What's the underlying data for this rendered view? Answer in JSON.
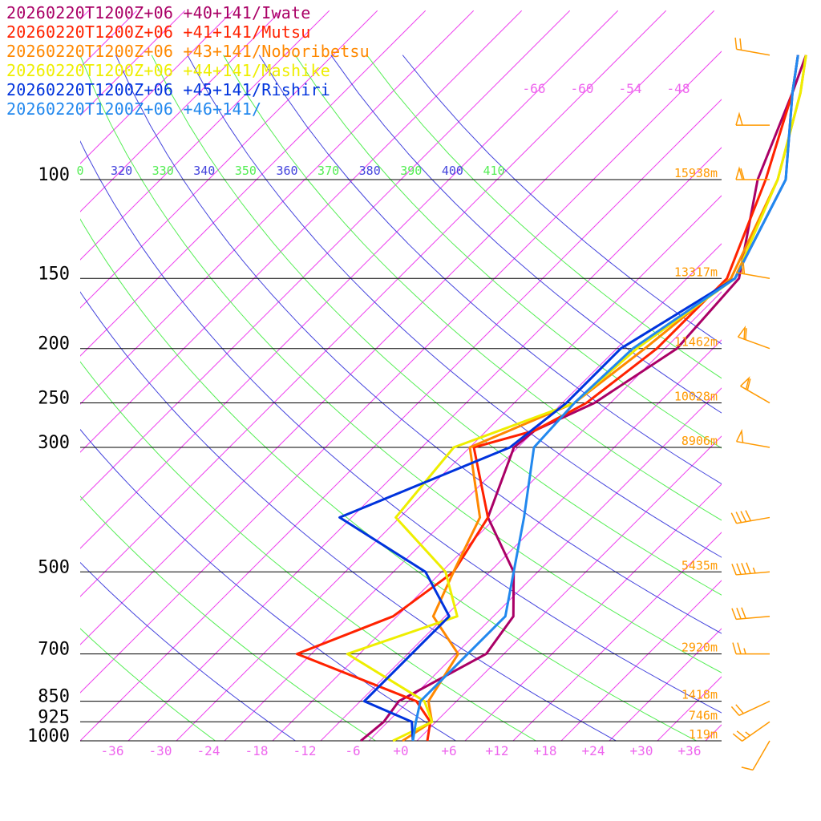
{
  "chart_data": {
    "type": "line",
    "title": "",
    "xlabel": "",
    "ylabel": "",
    "xlim": [
      -40,
      40
    ],
    "grid": true,
    "legend_placement": "top-left",
    "pressure_levels": [
      {
        "p": 100,
        "label": "100",
        "height": "15938m"
      },
      {
        "p": 150,
        "label": "150",
        "height": "13317m"
      },
      {
        "p": 200,
        "label": "200",
        "height": "11462m"
      },
      {
        "p": 250,
        "label": "250",
        "height": "10028m"
      },
      {
        "p": 300,
        "label": "300",
        "height": "8906m"
      },
      {
        "p": 500,
        "label": "500",
        "height": "5435m"
      },
      {
        "p": 700,
        "label": "700",
        "height": "2920m"
      },
      {
        "p": 850,
        "label": "850",
        "height": "1418m"
      },
      {
        "p": 925,
        "label": "925",
        "height": "746m"
      },
      {
        "p": 1000,
        "label": "1000",
        "height": "119m"
      }
    ],
    "x_ticks": [
      {
        "v": -36,
        "label": "-36"
      },
      {
        "v": -30,
        "label": "-30"
      },
      {
        "v": -24,
        "label": "-24"
      },
      {
        "v": -18,
        "label": "-18"
      },
      {
        "v": -12,
        "label": "-12"
      },
      {
        "v": -6,
        "label": "-6"
      },
      {
        "v": 0,
        "label": "+0"
      },
      {
        "v": 6,
        "label": "+6"
      },
      {
        "v": 12,
        "label": "+12"
      },
      {
        "v": 18,
        "label": "+18"
      },
      {
        "v": 24,
        "label": "+24"
      },
      {
        "v": 30,
        "label": "+30"
      },
      {
        "v": 36,
        "label": "+36"
      }
    ],
    "isotherm_labels": [
      "-66",
      "-60",
      "-54",
      "-48"
    ],
    "theta_labels": [
      {
        "text": "0",
        "color": "#55ee55"
      },
      {
        "text": "320",
        "color": "#4444dd"
      },
      {
        "text": "330",
        "color": "#55ee55"
      },
      {
        "text": "340",
        "color": "#4444dd"
      },
      {
        "text": "350",
        "color": "#55ee55"
      },
      {
        "text": "360",
        "color": "#4444dd"
      },
      {
        "text": "370",
        "color": "#55ee55"
      },
      {
        "text": "380",
        "color": "#4444dd"
      },
      {
        "text": "390",
        "color": "#55ee55"
      },
      {
        "text": "400",
        "color": "#4444dd"
      },
      {
        "text": "410",
        "color": "#55ee55"
      }
    ],
    "series": [
      {
        "name": "20260220T1200Z+06 +40+141/Iwate",
        "color": "#aa0066",
        "points": [
          [
            1000,
            -5
          ],
          [
            925,
            -4.5
          ],
          [
            850,
            -5.2
          ],
          [
            700,
            -0.2
          ],
          [
            600,
            -1.5
          ],
          [
            500,
            -7
          ],
          [
            400,
            -17
          ],
          [
            300,
            -22.5
          ],
          [
            280,
            -22
          ],
          [
            250,
            -18
          ],
          [
            200,
            -14.5
          ],
          [
            150,
            -15.5
          ],
          [
            100,
            -25.5
          ],
          [
            70,
            -32
          ],
          [
            60,
            -35
          ]
        ]
      },
      {
        "name": "20260220T1200Z+06 +41+141/Mutsu",
        "color": "#ff2200",
        "points": [
          [
            1000,
            3.3
          ],
          [
            925,
            1.3
          ],
          [
            850,
            -3
          ],
          [
            700,
            -23.8
          ],
          [
            600,
            -16.5
          ],
          [
            500,
            -14.5
          ],
          [
            400,
            -17
          ],
          [
            300,
            -27.5
          ],
          [
            280,
            -22
          ],
          [
            250,
            -19
          ],
          [
            200,
            -17
          ],
          [
            150,
            -17
          ],
          [
            100,
            -24.5
          ],
          [
            70,
            -32
          ],
          [
            60,
            -36
          ]
        ]
      },
      {
        "name": "20260220T1200Z+06 +43+141/Noboribetsu",
        "color": "#ff8800",
        "points": [
          [
            1000,
            0.2
          ],
          [
            925,
            1.5
          ],
          [
            850,
            -1.5
          ],
          [
            700,
            -3.7
          ],
          [
            600,
            -11.5
          ],
          [
            500,
            -14.5
          ],
          [
            400,
            -18
          ],
          [
            300,
            -28
          ],
          [
            250,
            -20.5
          ],
          [
            200,
            -18.5
          ],
          [
            150,
            -16.5
          ],
          [
            100,
            -23
          ],
          [
            70,
            -31
          ],
          [
            60,
            -35
          ]
        ]
      },
      {
        "name": "20260220T1200Z+06 +44+141/Mashike",
        "color": "#eeee00",
        "points": [
          [
            1000,
            -1
          ],
          [
            925,
            1.5
          ],
          [
            850,
            -2
          ],
          [
            700,
            -17.5
          ],
          [
            600,
            -8.5
          ],
          [
            500,
            -15.5
          ],
          [
            400,
            -28.5
          ],
          [
            300,
            -30
          ],
          [
            250,
            -20.5
          ],
          [
            200,
            -19.5
          ],
          [
            150,
            -16
          ],
          [
            100,
            -23
          ],
          [
            70,
            -31
          ],
          [
            60,
            -35
          ]
        ]
      },
      {
        "name": "20260220T1200Z+06 +45+141/Rishiri",
        "color": "#0033dd",
        "points": [
          [
            1000,
            1.5
          ],
          [
            925,
            -1
          ],
          [
            850,
            -9.5
          ],
          [
            700,
            -9.5
          ],
          [
            600,
            -9.5
          ],
          [
            500,
            -18
          ],
          [
            400,
            -35.5
          ],
          [
            300,
            -23
          ],
          [
            250,
            -21.5
          ],
          [
            200,
            -21.5
          ],
          [
            150,
            -16
          ],
          [
            100,
            -22
          ],
          [
            70,
            -32
          ],
          [
            60,
            -36
          ]
        ]
      },
      {
        "name": "20260220T1200Z+06 +46+141/",
        "color": "#2288ee",
        "points": [
          [
            1000,
            1.5
          ],
          [
            925,
            -0.5
          ],
          [
            850,
            -2.5
          ],
          [
            700,
            -2.5
          ],
          [
            600,
            -2.5
          ],
          [
            500,
            -7
          ],
          [
            400,
            -12.5
          ],
          [
            300,
            -20
          ],
          [
            250,
            -20.5
          ],
          [
            200,
            -20
          ],
          [
            150,
            -16
          ],
          [
            100,
            -22
          ],
          [
            70,
            -32
          ],
          [
            60,
            -36
          ]
        ]
      }
    ],
    "wind_barbs": [
      {
        "p": 60,
        "dir": 280,
        "kt": 20
      },
      {
        "p": 80,
        "dir": 270,
        "kt": 50
      },
      {
        "p": 100,
        "dir": 270,
        "kt": 60
      },
      {
        "p": 150,
        "dir": 280,
        "kt": 60
      },
      {
        "p": 200,
        "dir": 290,
        "kt": 60
      },
      {
        "p": 250,
        "dir": 300,
        "kt": 60
      },
      {
        "p": 300,
        "dir": 280,
        "kt": 50
      },
      {
        "p": 400,
        "dir": 260,
        "kt": 40
      },
      {
        "p": 500,
        "dir": 265,
        "kt": 45
      },
      {
        "p": 600,
        "dir": 265,
        "kt": 30
      },
      {
        "p": 700,
        "dir": 270,
        "kt": 25
      },
      {
        "p": 850,
        "dir": 245,
        "kt": 20
      },
      {
        "p": 925,
        "dir": 235,
        "kt": 25
      },
      {
        "p": 1000,
        "dir": 210,
        "kt": 10
      }
    ],
    "colors": {
      "isotherm": "#ee44ee",
      "theta_a": "#55ee55",
      "theta_b": "#4444dd",
      "axis_label": "#ee66ee",
      "height_label": "#ff9900",
      "barb": "#ff9900"
    }
  }
}
